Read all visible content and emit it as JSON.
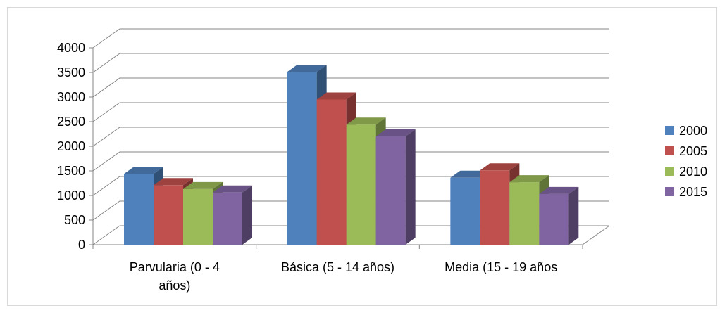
{
  "chart_data": {
    "type": "bar",
    "bar_style": "3d-clustered",
    "categories": [
      [
        "Parvularia (0 - 4",
        "años)"
      ],
      [
        "Básica (5 - 14 años)"
      ],
      [
        "Media (15 - 19 años"
      ]
    ],
    "series": [
      {
        "name": "2000",
        "values": [
          1440,
          3510,
          1360
        ],
        "color": "#4f81bd"
      },
      {
        "name": "2005",
        "values": [
          1210,
          2950,
          1510
        ],
        "color": "#c0504d"
      },
      {
        "name": "2010",
        "values": [
          1130,
          2440,
          1270
        ],
        "color": "#9bbb59"
      },
      {
        "name": "2015",
        "values": [
          1060,
          2200,
          1030
        ],
        "color": "#8064a2"
      }
    ],
    "y_ticks": [
      "0",
      "500",
      "1000",
      "1500",
      "2000",
      "2500",
      "3000",
      "3500",
      "4000"
    ],
    "ylim": [
      0,
      4000
    ],
    "grid": true,
    "legend_position": "right",
    "title": "",
    "xlabel": "",
    "ylabel": ""
  }
}
